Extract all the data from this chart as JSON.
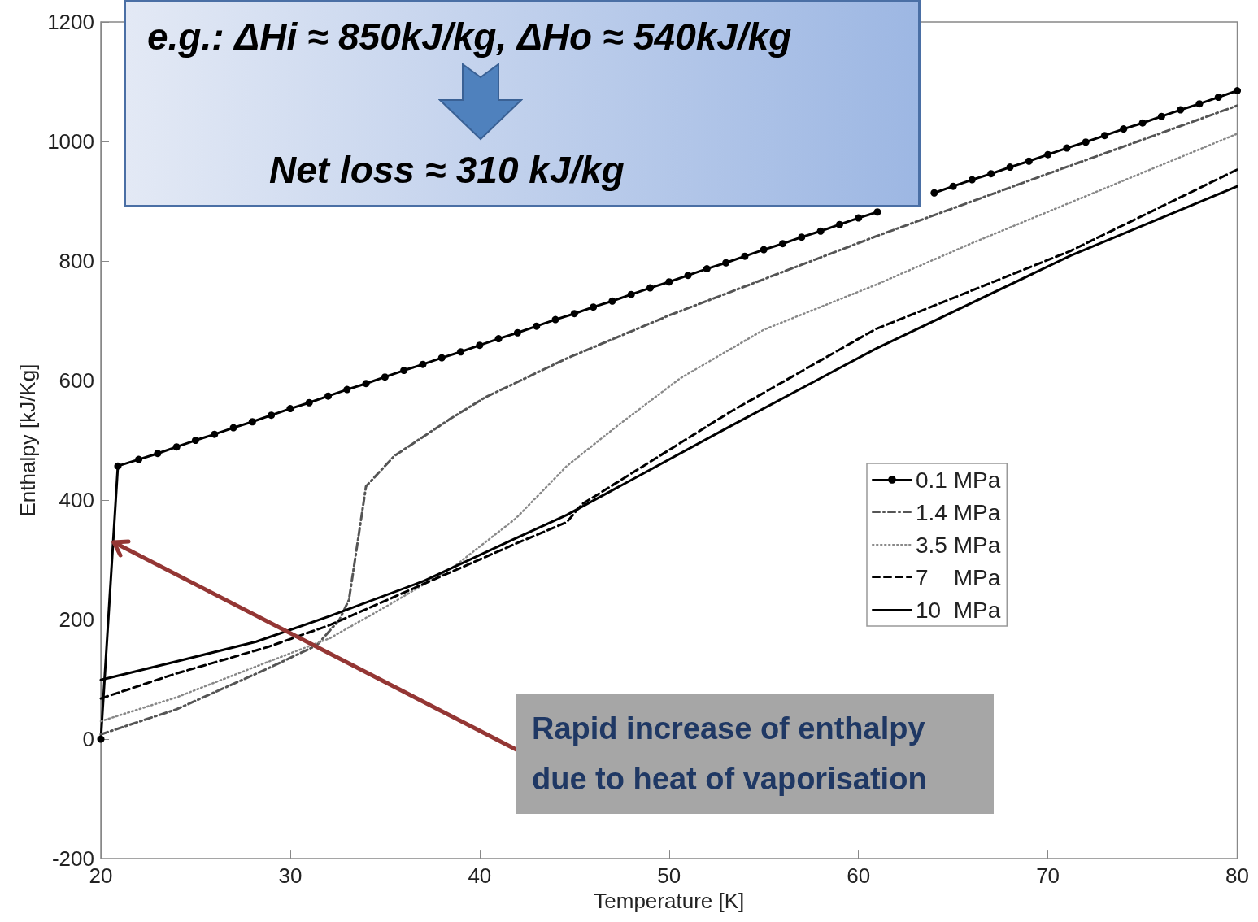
{
  "chart_data": {
    "type": "line",
    "xlabel": "Temperature [K]",
    "ylabel": "Enthalpy [kJ/Kg]",
    "xlim": [
      20,
      80
    ],
    "xticks": [
      20,
      30,
      40,
      50,
      60,
      70,
      80
    ],
    "ylim": [
      -200,
      1200
    ],
    "yticks": [
      -200,
      0,
      200,
      400,
      600,
      800,
      1000,
      1200
    ],
    "grid": false,
    "legend": "right",
    "annotations": [
      "e.g.: ΔHi ≈ 850kJ/kg, ΔHo ≈ 540kJ/kg",
      "Net loss ≈ 310 kJ/kg",
      {
        "text": "Rapid increase of enthalpy due to heat of vaporisation",
        "x": 20.7,
        "y": 330
      }
    ],
    "series": [
      {
        "name": "0.1 MPa",
        "color": "#000000",
        "marker": "circle",
        "line_style": "solid",
        "x": [
          20,
          20.9,
          22,
          23,
          24,
          25,
          26,
          27,
          28,
          29,
          30,
          31,
          32,
          33,
          34,
          35,
          36,
          37,
          38,
          39,
          40,
          41,
          42,
          43,
          44,
          45,
          46,
          47,
          48,
          49,
          50,
          51,
          52,
          53,
          54,
          55,
          56,
          57,
          58,
          59,
          60,
          61,
          62,
          63,
          64,
          65,
          66,
          67,
          68,
          69,
          70,
          71,
          72,
          73,
          74,
          75,
          76,
          77,
          78,
          79,
          80
        ],
        "values": [
          0,
          457,
          468,
          478,
          489,
          500,
          510,
          521,
          531,
          542,
          553,
          563,
          574,
          585,
          595,
          606,
          617,
          627,
          638,
          648,
          659,
          670,
          680,
          691,
          702,
          712,
          723,
          733,
          744,
          755,
          765,
          776,
          787,
          797,
          808,
          819,
          829,
          840,
          850,
          861,
          872,
          882,
          null,
          null,
          914,
          925,
          936,
          946,
          957,
          967,
          978,
          989,
          999,
          1010,
          1021,
          1031,
          1042,
          1053,
          1063,
          1074,
          1085
        ]
      },
      {
        "name": "1.4 MPa",
        "color": "#555555",
        "marker": "none",
        "line_style": "dashdot",
        "x": [
          20,
          24,
          28.8,
          31.4,
          32.6,
          33.1,
          34,
          35.5,
          38.4,
          40.3,
          44.6,
          50,
          60.9,
          70,
          80
        ],
        "values": [
          8,
          50,
          118,
          157,
          200,
          233,
          423,
          474,
          535,
          572,
          637,
          709,
          841,
          946,
          1060
        ]
      },
      {
        "name": "3.5 MPa",
        "color": "#888888",
        "marker": "none",
        "line_style": "dotted",
        "x": [
          20,
          24,
          28.8,
          32.1,
          35.4,
          38.7,
          41.9,
          44.6,
          47.3,
          50.6,
          55,
          60.9,
          66,
          71.2,
          80
        ],
        "values": [
          30,
          70,
          129,
          169,
          228,
          290,
          369,
          457,
          525,
          604,
          685,
          760,
          830,
          898,
          1013
        ]
      },
      {
        "name": "7    MPa",
        "color": "#000000",
        "marker": "none",
        "line_style": "dashed",
        "x": [
          20,
          24,
          28.8,
          32.1,
          37,
          41.9,
          44.6,
          45.4,
          53.2,
          60.9,
          71.2,
          80
        ],
        "values": [
          68,
          110,
          154,
          191,
          259,
          327,
          363,
          393,
          547,
          686,
          817,
          953
        ]
      },
      {
        "name": "10  MPa",
        "color": "#000000",
        "marker": "none",
        "line_style": "solid",
        "x": [
          20,
          24,
          28.2,
          32.1,
          37,
          41.9,
          44.6,
          53.2,
          60.9,
          71.2,
          80
        ],
        "values": [
          99,
          130,
          163,
          206,
          264,
          336,
          375,
          523,
          653,
          809,
          925
        ]
      }
    ]
  }
}
